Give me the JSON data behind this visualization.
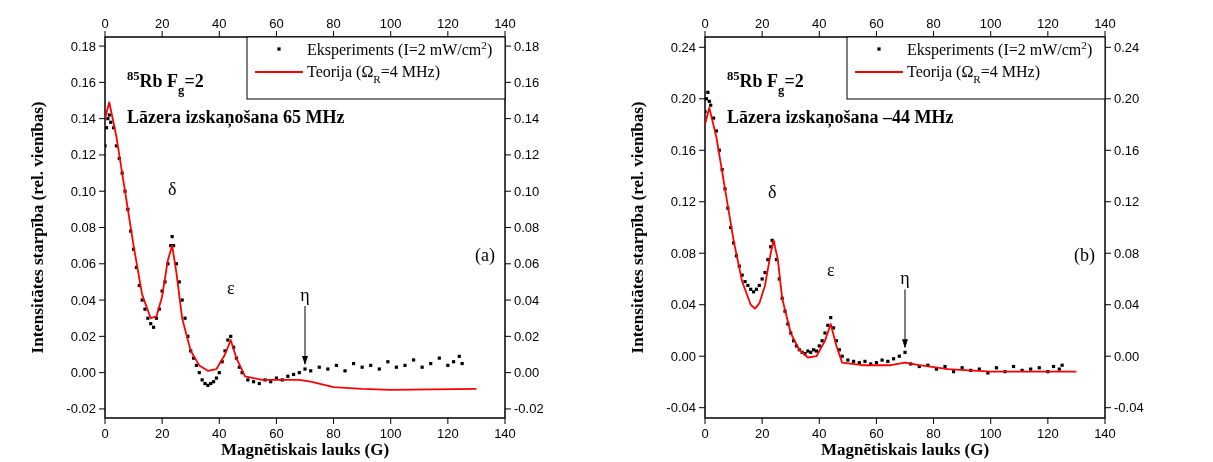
{
  "chart_data": [
    {
      "type": "scatter",
      "xlabel": "Magnētiskais lauks (G)",
      "ylabel": "Intensitātes starpība (rel. vienības)",
      "xlim": [
        0,
        140
      ],
      "xticks": [
        0,
        20,
        40,
        60,
        80,
        100,
        120,
        140
      ],
      "x2lim": [
        0,
        140
      ],
      "x2ticks": [
        0,
        20,
        40,
        60,
        80,
        100,
        120,
        140
      ],
      "ylim": [
        -0.025,
        0.185
      ],
      "yticks": [
        {
          "value": -0.02,
          "label": "-0.02"
        },
        {
          "value": 0,
          "label": "0.00"
        },
        {
          "value": 0.02,
          "label": "0.02"
        },
        {
          "value": 0.04,
          "label": "0.04"
        },
        {
          "value": 0.06,
          "label": "0.06"
        },
        {
          "value": 0.08,
          "label": "0.08"
        },
        {
          "value": 0.1,
          "label": "0.10"
        },
        {
          "value": 0.12,
          "label": "0.12"
        },
        {
          "value": 0.14,
          "label": "0.14"
        },
        {
          "value": 0.16,
          "label": "0.16"
        },
        {
          "value": 0.18,
          "label": "0.18"
        }
      ],
      "y2lim": [
        -0.025,
        0.185
      ],
      "y2ticks": [
        {
          "value": -0.02,
          "label": "-0.02"
        },
        {
          "value": 0,
          "label": "0.00"
        },
        {
          "value": 0.02,
          "label": "0.02"
        },
        {
          "value": 0.04,
          "label": "0.04"
        },
        {
          "value": 0.06,
          "label": "0.06"
        },
        {
          "value": 0.08,
          "label": "0.08"
        },
        {
          "value": 0.1,
          "label": "0.10"
        },
        {
          "value": 0.12,
          "label": "0.12"
        },
        {
          "value": 0.14,
          "label": "0.14"
        },
        {
          "value": 0.16,
          "label": "0.16"
        },
        {
          "value": 0.18,
          "label": "0.18"
        }
      ],
      "legend": "top right",
      "grid": false,
      "annotations": [
        "$^{85}$Rb F$_{g}$=2",
        "Lāzera izskaņošana 65 MHz",
        "(a)",
        {
          "text": "δ",
          "x": 23.5,
          "y": 0.075
        },
        {
          "text": "ε",
          "x": 44,
          "y": 0.02
        },
        {
          "text": "η",
          "x": 70,
          "y": 0.002
        }
      ],
      "series": [
        {
          "type": "scatter",
          "name": "Eksperiments (I=2 mW/cm$^{2}$)",
          "color": "#000000",
          "marker": "square",
          "x": [
            0,
            0.5,
            1,
            1.5,
            2,
            3,
            4,
            5,
            6,
            7,
            8,
            9,
            10,
            11,
            12,
            13,
            14,
            15,
            16,
            17,
            18,
            19,
            20,
            21,
            22,
            23,
            23.5,
            24,
            25,
            26,
            27,
            28,
            29,
            30,
            31,
            32,
            33,
            34,
            35,
            36,
            37,
            38,
            39,
            40,
            41,
            42,
            43,
            44,
            45,
            46,
            47,
            48,
            50,
            52,
            54,
            56,
            58,
            60,
            62,
            64,
            66,
            68,
            70,
            72,
            75,
            78,
            81,
            84,
            87,
            90,
            93,
            96,
            99,
            102,
            105,
            108,
            111,
            114,
            117,
            120,
            122,
            124,
            125
          ],
          "values": [
            0.125,
            0.135,
            0.14,
            0.142,
            0.138,
            0.135,
            0.125,
            0.118,
            0.11,
            0.1,
            0.09,
            0.078,
            0.068,
            0.058,
            0.048,
            0.04,
            0.035,
            0.03,
            0.027,
            0.025,
            0.03,
            0.035,
            0.045,
            0.05,
            0.06,
            0.07,
            0.075,
            0.07,
            0.06,
            0.05,
            0.04,
            0.03,
            0.02,
            0.012,
            0.008,
            0.004,
            0.0,
            -0.004,
            -0.006,
            -0.007,
            -0.006,
            -0.005,
            -0.003,
            0.0,
            0.006,
            0.012,
            0.018,
            0.02,
            0.014,
            0.008,
            0.003,
            0.0,
            -0.004,
            -0.005,
            -0.006,
            -0.004,
            -0.005,
            -0.003,
            -0.004,
            -0.002,
            -0.001,
            0.0,
            0.002,
            0.001,
            0.003,
            0.002,
            0.004,
            0.001,
            0.005,
            0.003,
            0.004,
            0.002,
            0.006,
            0.003,
            0.004,
            0.007,
            0.003,
            0.005,
            0.008,
            0.004,
            0.006,
            0.009,
            0.005
          ]
        },
        {
          "type": "line",
          "name": "Teorija (Ω$_{R}$=4 MHz)",
          "color": "#ff0000",
          "line_style": "solid",
          "x": [
            0,
            1.5,
            4,
            7,
            10,
            13,
            16,
            18,
            20,
            22,
            23.5,
            25,
            27,
            30,
            33,
            36,
            39,
            42,
            44,
            46,
            49,
            55,
            62,
            68,
            72,
            80,
            90,
            100,
            130
          ],
          "values": [
            0.14,
            0.149,
            0.13,
            0.1,
            0.07,
            0.043,
            0.03,
            0.031,
            0.042,
            0.062,
            0.07,
            0.055,
            0.03,
            0.012,
            0.004,
            0.001,
            0.002,
            0.01,
            0.018,
            0.008,
            -0.002,
            -0.004,
            -0.004,
            -0.004,
            -0.005,
            -0.008,
            -0.009,
            -0.0095,
            -0.009
          ]
        }
      ]
    },
    {
      "type": "scatter",
      "xlabel": "Magnētiskais lauks (G)",
      "ylabel": "Intensitātes starpība (rel. vienības)",
      "xlim": [
        0,
        140
      ],
      "xticks": [
        0,
        20,
        40,
        60,
        80,
        100,
        120,
        140
      ],
      "x2lim": [
        0,
        140
      ],
      "x2ticks": [
        0,
        20,
        40,
        60,
        80,
        100,
        120,
        140
      ],
      "ylim": [
        -0.048,
        0.248
      ],
      "yticks": [
        {
          "value": -0.04,
          "label": "-0.04"
        },
        {
          "value": 0,
          "label": "0.00"
        },
        {
          "value": 0.04,
          "label": "0.04"
        },
        {
          "value": 0.08,
          "label": "0.08"
        },
        {
          "value": 0.12,
          "label": "0.12"
        },
        {
          "value": 0.16,
          "label": "0.16"
        },
        {
          "value": 0.2,
          "label": "0.20"
        },
        {
          "value": 0.24,
          "label": "0.24"
        }
      ],
      "y2lim": [
        -0.048,
        0.248
      ],
      "y2ticks": [
        {
          "value": -0.04,
          "label": "-0.04"
        },
        {
          "value": 0,
          "label": "0.00"
        },
        {
          "value": 0.04,
          "label": "0.04"
        },
        {
          "value": 0.08,
          "label": "0.08"
        },
        {
          "value": 0.12,
          "label": "0.12"
        },
        {
          "value": 0.16,
          "label": "0.16"
        },
        {
          "value": 0.2,
          "label": "0.20"
        },
        {
          "value": 0.24,
          "label": "0.24"
        }
      ],
      "legend": "top right",
      "grid": false,
      "annotations": [
        "$^{85}$Rb F$_{g}$=2",
        "Lāzera izskaņošana –44 MHz",
        "(b)",
        {
          "text": "δ",
          "x": 23.5,
          "y": 0.09
        },
        {
          "text": "ε",
          "x": 44,
          "y": 0.03
        },
        {
          "text": "η",
          "x": 70,
          "y": 0.003
        }
      ],
      "series": [
        {
          "type": "scatter",
          "name": "Eksperiments (I=2 mW/cm$^{2}$)",
          "color": "#000000",
          "marker": "square",
          "x": [
            0,
            0.5,
            1,
            1.5,
            2,
            3,
            4,
            5,
            6,
            7,
            8,
            9,
            10,
            11,
            12,
            13,
            14,
            15,
            16,
            17,
            18,
            19,
            20,
            21,
            22,
            23,
            23.5,
            24,
            25,
            26,
            27,
            28,
            29,
            30,
            31,
            32,
            33,
            34,
            35,
            36,
            37,
            38,
            39,
            40,
            41,
            42,
            43,
            44,
            45,
            46,
            47,
            48,
            50,
            52,
            54,
            56,
            58,
            60,
            62,
            64,
            66,
            68,
            70,
            72,
            75,
            78,
            81,
            84,
            87,
            90,
            93,
            96,
            99,
            102,
            105,
            108,
            111,
            114,
            117,
            120,
            122,
            124,
            125
          ],
          "values": [
            0.19,
            0.2,
            0.205,
            0.198,
            0.195,
            0.185,
            0.175,
            0.16,
            0.145,
            0.13,
            0.115,
            0.1,
            0.088,
            0.078,
            0.07,
            0.063,
            0.058,
            0.055,
            0.052,
            0.05,
            0.052,
            0.055,
            0.06,
            0.065,
            0.075,
            0.085,
            0.09,
            0.088,
            0.075,
            0.06,
            0.045,
            0.035,
            0.025,
            0.018,
            0.012,
            0.008,
            0.005,
            0.003,
            0.002,
            0.004,
            0.003,
            0.005,
            0.004,
            0.008,
            0.012,
            0.018,
            0.024,
            0.03,
            0.022,
            0.012,
            0.005,
            0.0,
            -0.003,
            -0.004,
            -0.005,
            -0.004,
            -0.006,
            -0.005,
            -0.003,
            -0.004,
            -0.002,
            0.0,
            0.003,
            -0.006,
            -0.008,
            -0.007,
            -0.01,
            -0.008,
            -0.012,
            -0.009,
            -0.011,
            -0.01,
            -0.013,
            -0.009,
            -0.012,
            -0.008,
            -0.011,
            -0.01,
            -0.009,
            -0.012,
            -0.008,
            -0.01,
            -0.007
          ]
        },
        {
          "type": "line",
          "name": "Teorija (Ω$_{R}$=4 MHz)",
          "color": "#ff0000",
          "line_style": "solid",
          "x": [
            0,
            1.5,
            4,
            7,
            10,
            13,
            16,
            17.5,
            19,
            21,
            23,
            24,
            25.5,
            27,
            30,
            33,
            36,
            39,
            42,
            44,
            46,
            48,
            55,
            65,
            70,
            75,
            85,
            100,
            130
          ],
          "values": [
            0.18,
            0.193,
            0.17,
            0.13,
            0.09,
            0.058,
            0.04,
            0.037,
            0.041,
            0.055,
            0.08,
            0.09,
            0.075,
            0.045,
            0.018,
            0.005,
            -0.001,
            0,
            0.012,
            0.025,
            0.008,
            -0.005,
            -0.007,
            -0.007,
            -0.005,
            -0.007,
            -0.01,
            -0.012,
            -0.012
          ]
        }
      ]
    }
  ]
}
